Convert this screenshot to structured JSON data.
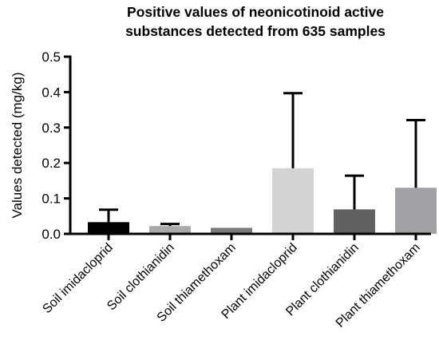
{
  "chart_data": {
    "type": "bar",
    "title_lines": [
      "Positive values of neonicotinoid active",
      "substances detected from 635 samples"
    ],
    "xlabel": "",
    "ylabel": "Values detected (mg/kg)",
    "ylim": [
      0,
      0.5
    ],
    "yticks": [
      "0.0",
      "0.1",
      "0.2",
      "0.3",
      "0.4",
      "0.5"
    ],
    "ytick_values": [
      0.0,
      0.1,
      0.2,
      0.3,
      0.4,
      0.5
    ],
    "categories": [
      "Soil imidacloprid",
      "Soil clothianidin",
      "Soil thiamethoxam",
      "Plant imidacloprid",
      "Plant clothianidin",
      "Plant thiamethoxam"
    ],
    "values": [
      0.033,
      0.022,
      0.017,
      0.185,
      0.069,
      0.13
    ],
    "error_upper": [
      0.068,
      0.028,
      null,
      0.397,
      0.164,
      0.321
    ],
    "colors": [
      "#000000",
      "#a9a9a9",
      "#7b7b7b",
      "#d3d3d3",
      "#616161",
      "#a1a1a6"
    ],
    "grid": false,
    "legend": "none"
  }
}
